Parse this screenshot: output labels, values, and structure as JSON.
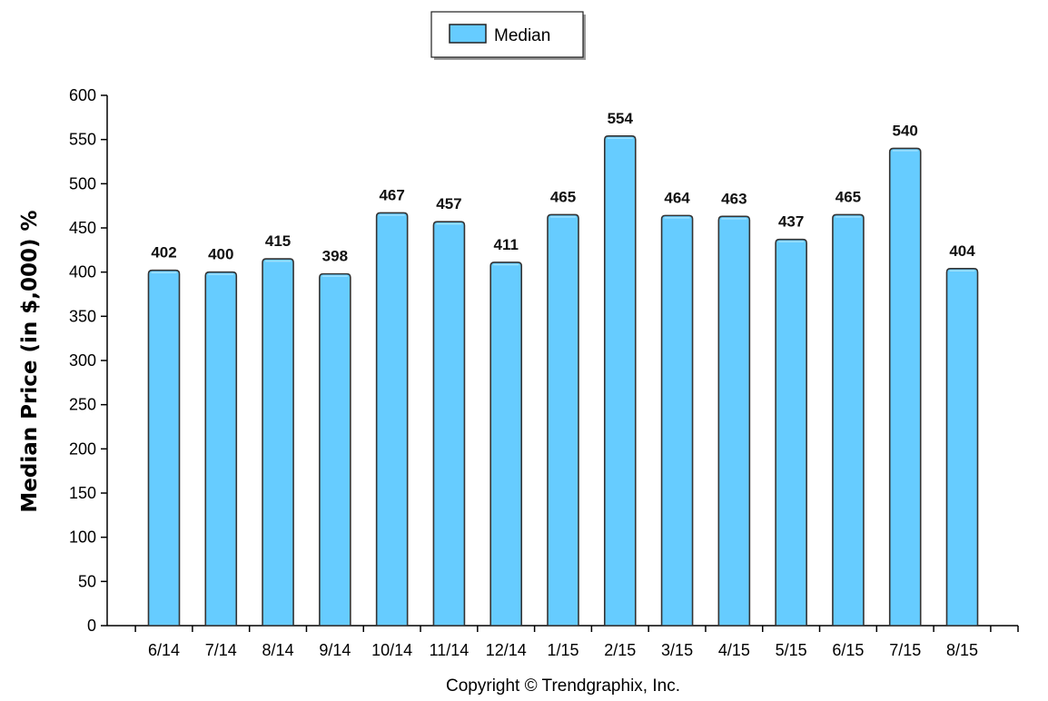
{
  "chart_data": {
    "type": "bar",
    "categories": [
      "6/14",
      "7/14",
      "8/14",
      "9/14",
      "10/14",
      "11/14",
      "12/14",
      "1/15",
      "2/15",
      "3/15",
      "4/15",
      "5/15",
      "6/15",
      "7/15",
      "8/15"
    ],
    "series": [
      {
        "name": "Median",
        "values": [
          402,
          400,
          415,
          398,
          467,
          457,
          411,
          465,
          554,
          464,
          463,
          437,
          465,
          540,
          404
        ]
      }
    ],
    "title": "",
    "xlabel": "",
    "ylabel": "Median Price (in $,000) %",
    "ylim": [
      0,
      600
    ],
    "yticks": [
      0,
      50,
      100,
      150,
      200,
      250,
      300,
      350,
      400,
      450,
      500,
      550,
      600
    ],
    "grid": false,
    "legend": "top-center",
    "data_labels": true,
    "bar_color": "#66ccff",
    "bar_edge_color": "#333333"
  },
  "footer": {
    "copyright": "Copyright © Trendgraphix, Inc."
  }
}
